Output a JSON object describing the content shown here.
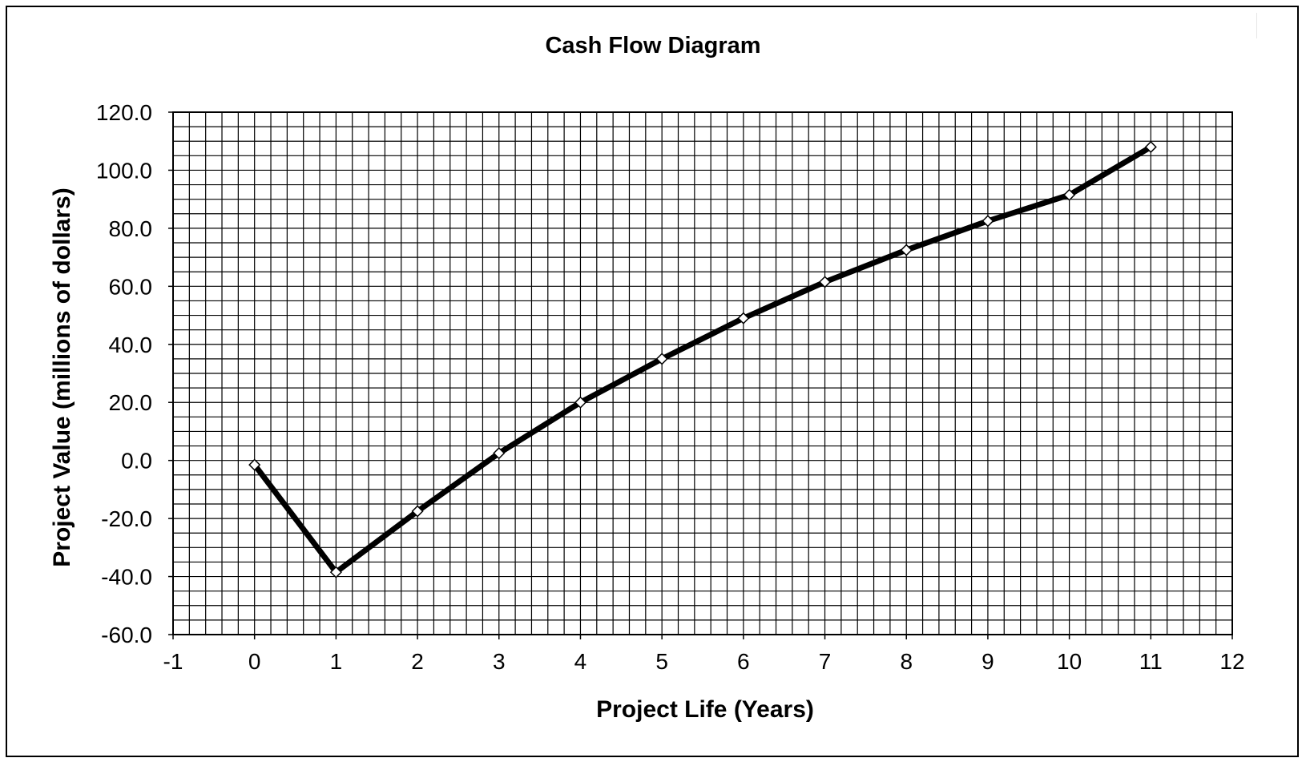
{
  "chart_data": {
    "type": "line",
    "title": "Cash Flow Diagram",
    "xlabel": "Project Life (Years)",
    "ylabel": "Project Value (millions of dollars)",
    "xlim": [
      -1,
      12
    ],
    "ylim": [
      -60,
      120
    ],
    "x_ticks": [
      "-1",
      "0",
      "1",
      "2",
      "3",
      "4",
      "5",
      "6",
      "7",
      "8",
      "9",
      "10",
      "11",
      "12"
    ],
    "y_ticks": [
      "120.0",
      "100.0",
      "80.0",
      "60.0",
      "40.0",
      "20.0",
      "0.0",
      "-20.0",
      "-40.0",
      "-60.0"
    ],
    "grid": true,
    "legend": "none",
    "line_color": "#000000",
    "marker": "diamond-white",
    "series": [
      {
        "x": [
          0,
          1,
          2,
          3,
          4,
          5,
          6,
          7,
          8,
          9,
          10,
          11
        ],
        "values": [
          -1.5,
          -38.5,
          -17.5,
          2.5,
          20.0,
          35.0,
          49.0,
          61.5,
          72.5,
          82.5,
          91.5,
          108.0
        ]
      }
    ]
  }
}
